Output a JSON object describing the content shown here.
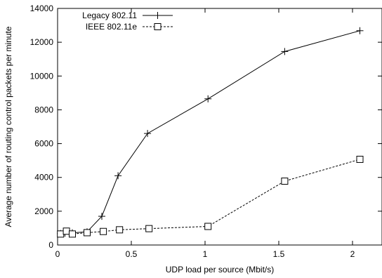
{
  "chart_data": {
    "type": "line",
    "title": "",
    "xlabel": "UDP load per source (Mbit/s)",
    "ylabel": "Average number of routing control packets per minute",
    "xlim": [
      0,
      2.2
    ],
    "ylim": [
      0,
      14000
    ],
    "xticks": [
      0,
      0.5,
      1,
      1.5,
      2
    ],
    "xtick_labels": [
      "0",
      "0.5",
      "1",
      "1.5",
      "2"
    ],
    "yticks": [
      0,
      2000,
      4000,
      6000,
      8000,
      10000,
      12000,
      14000
    ],
    "ytick_labels": [
      "0",
      "2000",
      "4000",
      "6000",
      "8000",
      "10000",
      "12000",
      "14000"
    ],
    "grid": false,
    "legend_position": "top-left",
    "series": [
      {
        "name": "Legacy 802.11",
        "line_style": "solid",
        "marker": "plus",
        "color": "#000000",
        "x": [
          0.02,
          0.05,
          0.1,
          0.2,
          0.3,
          0.41,
          0.61,
          1.02,
          1.54,
          2.05
        ],
        "y": [
          680,
          700,
          720,
          780,
          1700,
          4100,
          6600,
          8650,
          11450,
          12680
        ]
      },
      {
        "name": "IEEE 802.11e",
        "line_style": "dashed",
        "marker": "square",
        "color": "#000000",
        "x": [
          0.02,
          0.06,
          0.1,
          0.2,
          0.31,
          0.42,
          0.62,
          1.02,
          1.54,
          2.05
        ],
        "y": [
          650,
          820,
          650,
          730,
          800,
          900,
          970,
          1100,
          3780,
          5070
        ]
      }
    ]
  }
}
